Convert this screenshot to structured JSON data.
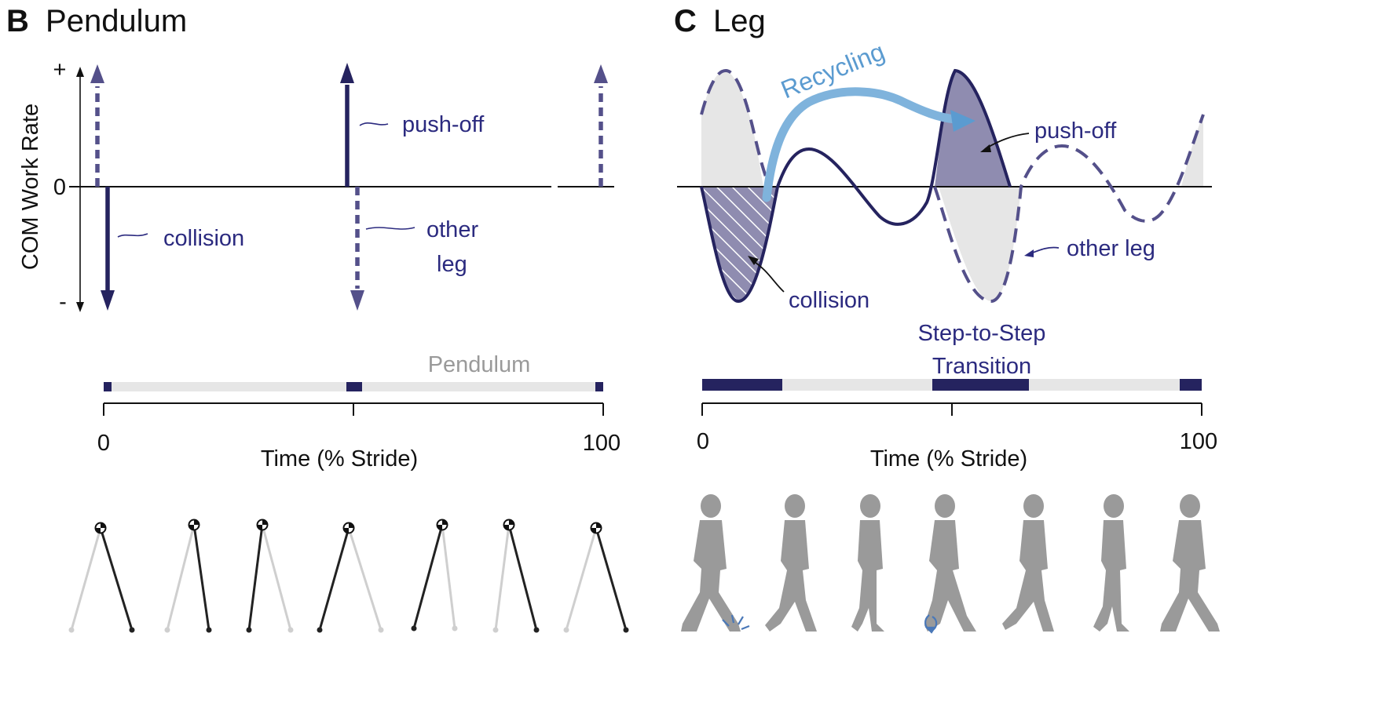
{
  "panel_b": {
    "letter": "B",
    "title": "Pendulum",
    "y_axis_label": "COM Work Rate",
    "y_plus": "+",
    "y_zero": "0",
    "y_minus": "-",
    "labels": {
      "push_off": "push-off",
      "collision": "collision",
      "other_leg_line1": "other",
      "other_leg_line2": "leg"
    },
    "timeline_label": "Pendulum",
    "x_start": "0",
    "x_end": "100",
    "x_label": "Time (% Stride)"
  },
  "panel_c": {
    "letter": "C",
    "title": "Leg",
    "recycling": "Recycling",
    "labels": {
      "push_off": "push-off",
      "collision": "collision",
      "other_leg": "other leg"
    },
    "transition_line1": "Step-to-Step",
    "transition_line2": "Transition",
    "x_start": "0",
    "x_end": "100",
    "x_label": "Time (% Stride)"
  },
  "colors": {
    "navy": "#25235f",
    "dashed_purple": "#54508a",
    "shade_grey": "#e6e6e6",
    "pushoff_fill": "#8f8cb0",
    "recycling_arrow": "#7fb3dc",
    "figure_grey": "#9a9a9a",
    "leg_dark": "#222222",
    "leg_light": "#cfcfcf"
  },
  "icons": [
    "pendulum-walker-icon",
    "human-walker-icon"
  ]
}
